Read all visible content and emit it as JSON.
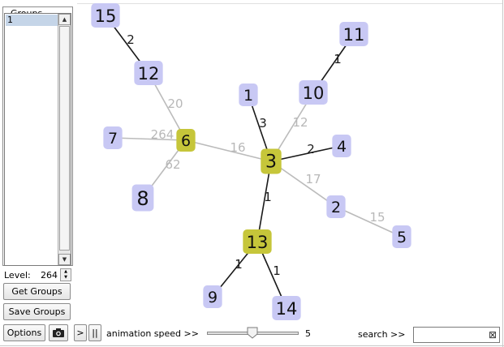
{
  "groups_panel": {
    "title": "Groups",
    "items": [
      "1"
    ],
    "selected": "1",
    "scroll_up": "▲",
    "scroll_down": "▼"
  },
  "level": {
    "label": "Level:",
    "value": "264"
  },
  "buttons": {
    "get_groups": "Get Groups",
    "save_groups": "Save Groups",
    "options": "Options",
    "play": ">",
    "pause": "||"
  },
  "animation": {
    "label": "animation speed >>",
    "speed": "5",
    "speed_fraction": 0.5
  },
  "search": {
    "label": "search >>",
    "value": "",
    "clear": "⊠"
  },
  "graph": {
    "colors": {
      "node": "#c8c8f4",
      "hub": "#c6c63a",
      "edge_dark": "#1a1a1a",
      "edge_light": "#bbbbbb",
      "weight_dark": "#1a1a1a",
      "weight_light": "#b8b8b8"
    },
    "nodes": [
      {
        "id": "3",
        "hub": true
      },
      {
        "id": "6",
        "hub": true
      },
      {
        "id": "13",
        "hub": true
      },
      {
        "id": "15"
      },
      {
        "id": "12"
      },
      {
        "id": "7"
      },
      {
        "id": "8"
      },
      {
        "id": "1"
      },
      {
        "id": "10"
      },
      {
        "id": "11"
      },
      {
        "id": "4"
      },
      {
        "id": "2"
      },
      {
        "id": "5"
      },
      {
        "id": "9"
      },
      {
        "id": "14"
      }
    ],
    "edges": [
      {
        "from": "15",
        "to": "12",
        "weight": "2",
        "dark": true
      },
      {
        "from": "12",
        "to": "6",
        "weight": "20",
        "dark": false
      },
      {
        "from": "7",
        "to": "6",
        "weight": "264",
        "dark": false
      },
      {
        "from": "8",
        "to": "6",
        "weight": "62",
        "dark": false
      },
      {
        "from": "6",
        "to": "3",
        "weight": "16",
        "dark": false
      },
      {
        "from": "1",
        "to": "3",
        "weight": "3",
        "dark": true
      },
      {
        "from": "10",
        "to": "3",
        "weight": "12",
        "dark": false
      },
      {
        "from": "11",
        "to": "10",
        "weight": "1",
        "dark": true
      },
      {
        "from": "4",
        "to": "3",
        "weight": "2",
        "dark": true
      },
      {
        "from": "2",
        "to": "3",
        "weight": "17",
        "dark": false
      },
      {
        "from": "2",
        "to": "5",
        "weight": "15",
        "dark": false
      },
      {
        "from": "13",
        "to": "3",
        "weight": "1",
        "dark": true
      },
      {
        "from": "9",
        "to": "13",
        "weight": "1",
        "dark": true
      },
      {
        "from": "14",
        "to": "13",
        "weight": "1",
        "dark": true
      }
    ]
  }
}
